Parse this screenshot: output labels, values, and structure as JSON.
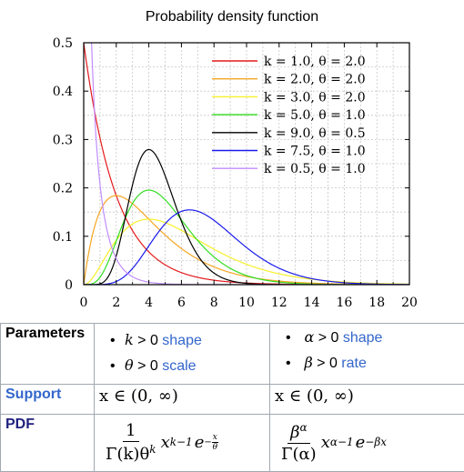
{
  "chart_data": {
    "type": "line",
    "title": "Probability density function",
    "xlim": [
      0,
      20
    ],
    "ylim": [
      0,
      0.5
    ],
    "xticks": [
      "0",
      "2",
      "4",
      "6",
      "8",
      "10",
      "12",
      "14",
      "16",
      "18",
      "20"
    ],
    "yticks": [
      "0",
      "0.1",
      "0.2",
      "0.3",
      "0.4",
      "0.5"
    ],
    "grid": true,
    "legend_position": "top-right",
    "series": [
      {
        "name": "k = 1.0, θ = 2.0",
        "k": 1.0,
        "theta": 2.0,
        "color": "#e41a1c"
      },
      {
        "name": "k = 2.0, θ = 2.0",
        "k": 2.0,
        "theta": 2.0,
        "color": "#f5a623"
      },
      {
        "name": "k = 3.0, θ = 2.0",
        "k": 3.0,
        "theta": 2.0,
        "color": "#f7f02a"
      },
      {
        "name": "k = 5.0, θ = 1.0",
        "k": 5.0,
        "theta": 1.0,
        "color": "#33dd22"
      },
      {
        "name": "k = 9.0, θ = 0.5",
        "k": 9.0,
        "theta": 0.5,
        "color": "#000000"
      },
      {
        "name": "k = 7.5, θ = 1.0",
        "k": 7.5,
        "theta": 1.0,
        "color": "#1a1aee"
      },
      {
        "name": "k = 0.5, θ = 1.0",
        "k": 0.5,
        "theta": 1.0,
        "color": "#c28cff"
      }
    ]
  },
  "table": {
    "parameters_label": "Parameters",
    "support_label": "Support",
    "pdf_label": "PDF",
    "params_left": [
      {
        "sym": "k",
        "cond": " > 0 ",
        "word": "shape"
      },
      {
        "sym": "θ",
        "cond": " > 0 ",
        "word": "scale"
      }
    ],
    "params_right": [
      {
        "sym": "α",
        "cond": " > 0 ",
        "word": "shape"
      },
      {
        "sym": "β",
        "cond": " > 0 ",
        "word": "rate"
      }
    ],
    "support_left": "x ∈ (0, ∞)",
    "support_right": "x ∈ (0, ∞)",
    "pdf_left": {
      "num": "1",
      "den": "Γ(k)θ",
      "den_sup": "k",
      "x": "x",
      "x_sup": "k−1",
      "e": "e",
      "e_sup_prefix": "−",
      "e_sup_num": "x",
      "e_sup_den": "θ"
    },
    "pdf_right": {
      "num": "β",
      "num_sup": "α",
      "den": "Γ(α)",
      "x": "x",
      "x_sup": "α−1",
      "e": "e",
      "e_sup": "−βx"
    }
  }
}
